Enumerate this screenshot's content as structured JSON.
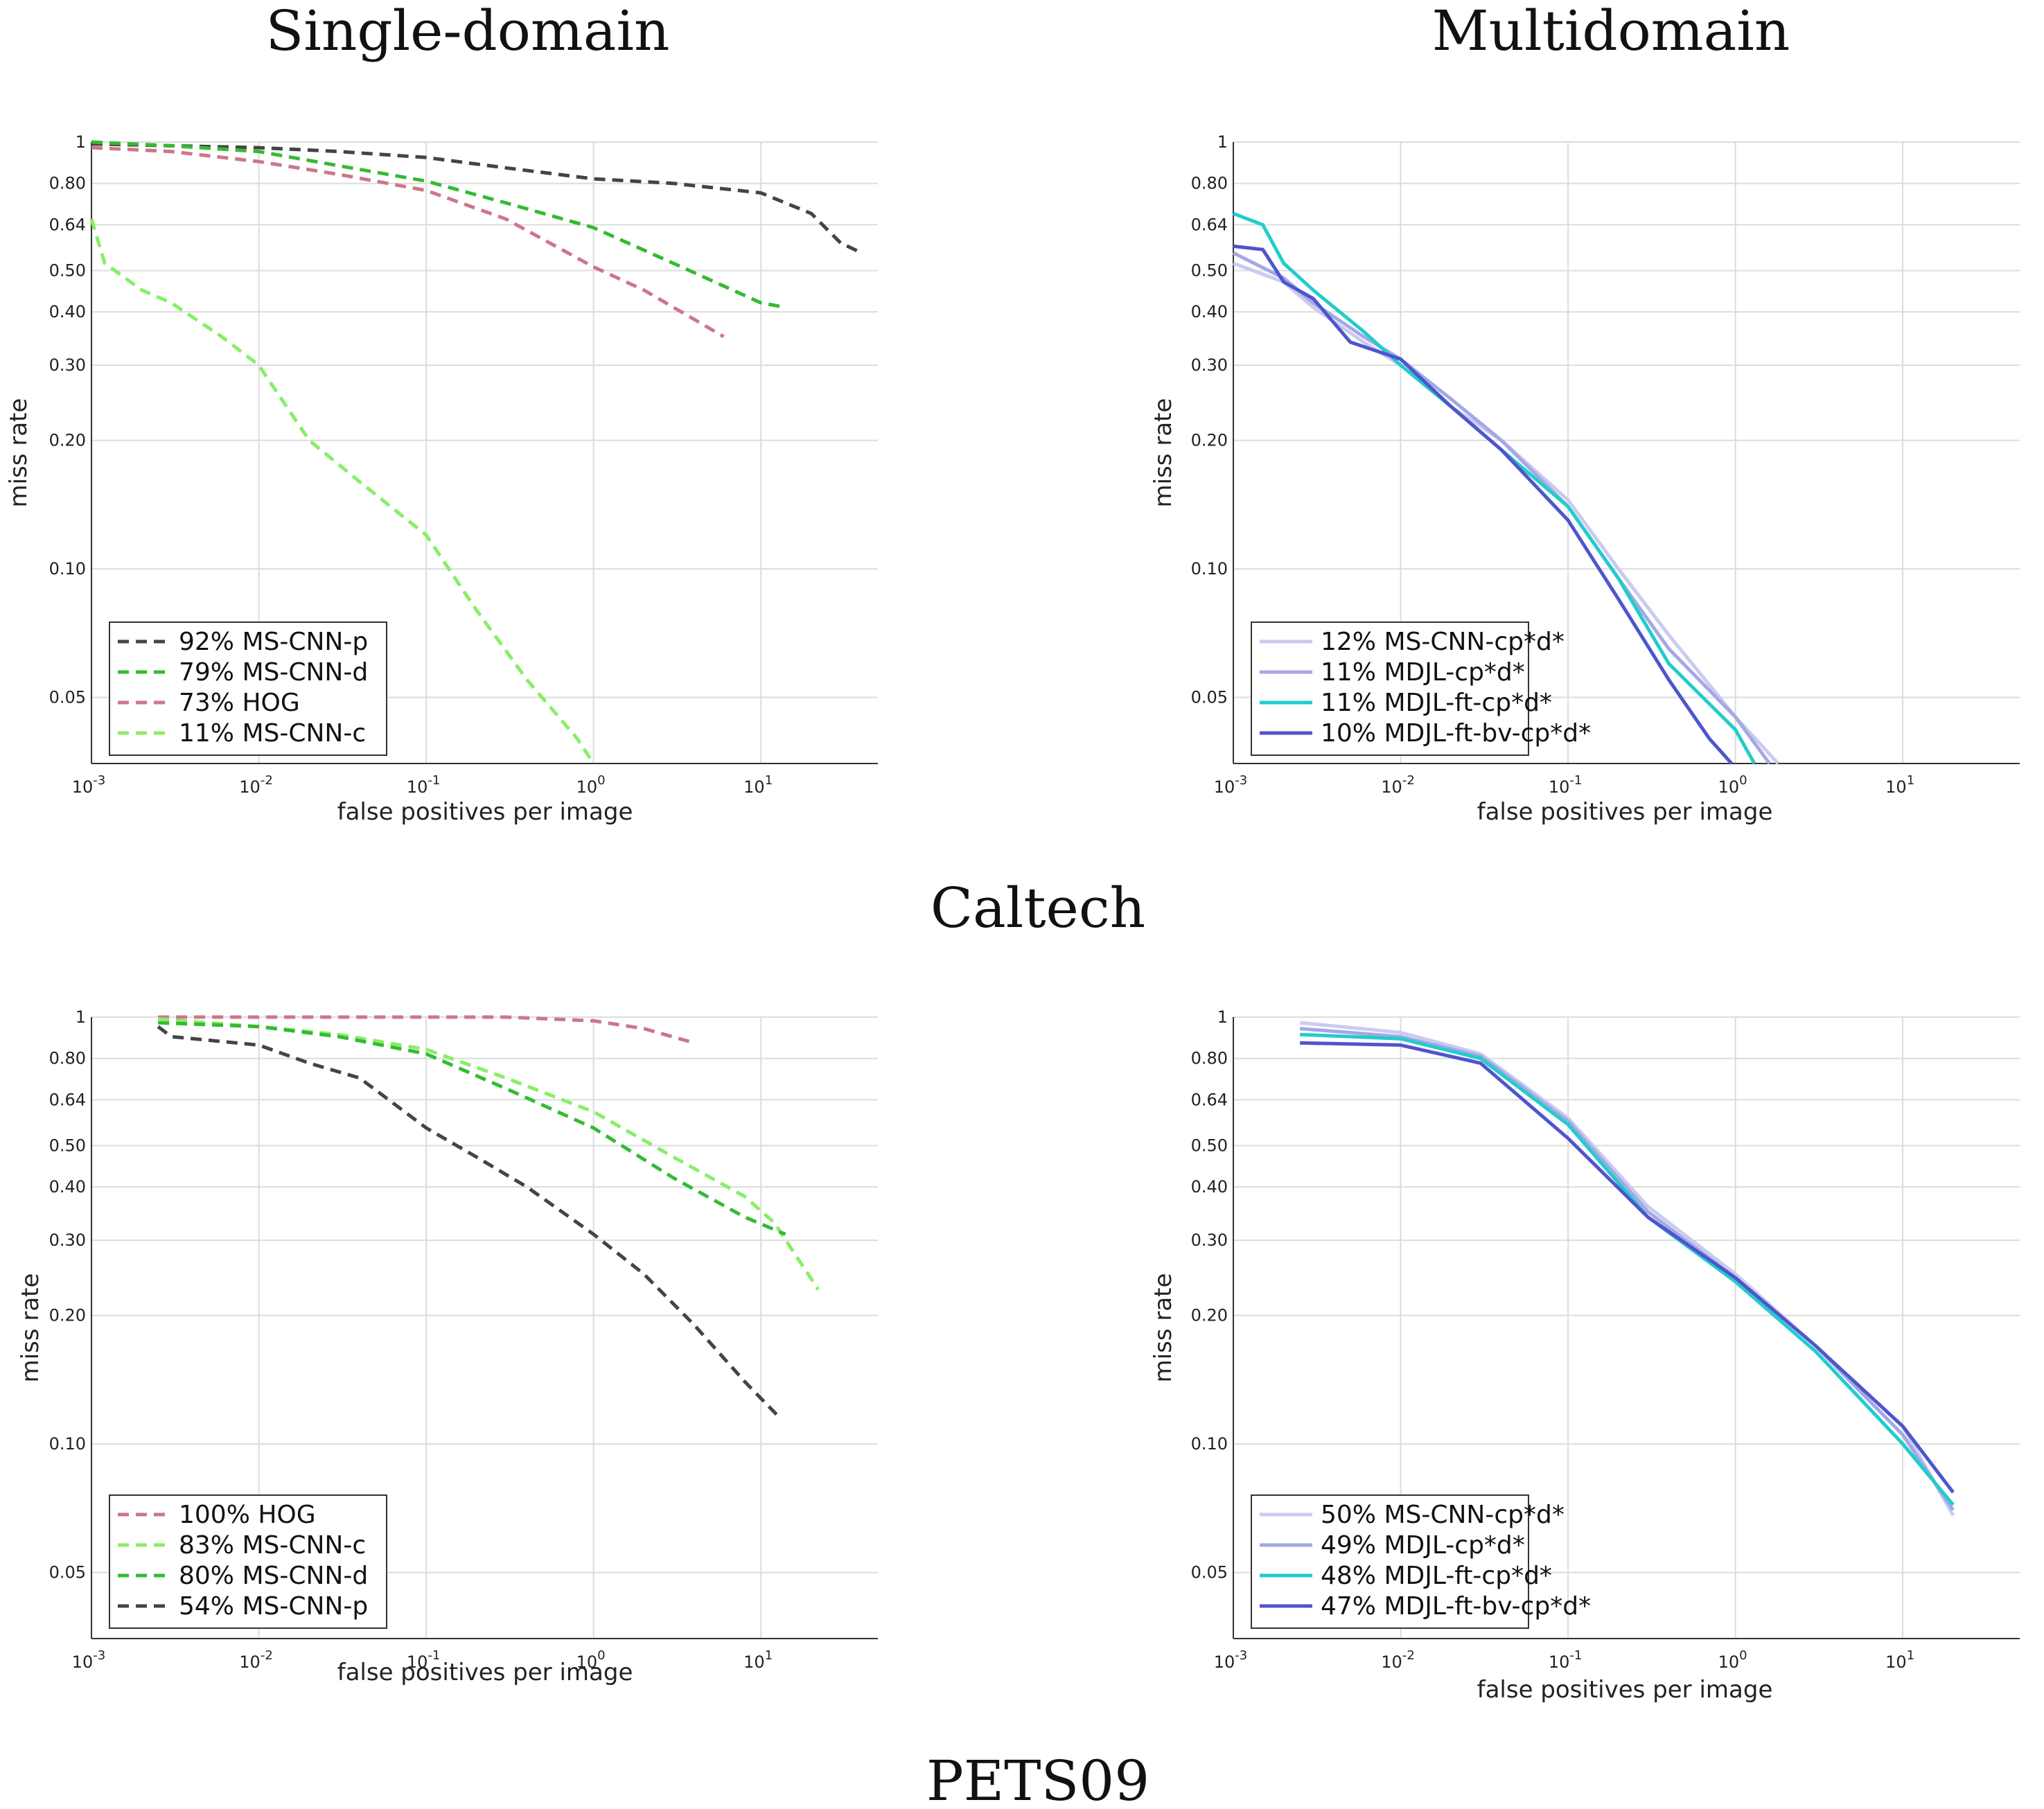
{
  "headings": {
    "single_domain": "Single-domain",
    "multidomain": "Multidomain",
    "caltech": "Caltech",
    "pets09": "PETS09"
  },
  "chart_data": [
    {
      "type": "line",
      "dataset": "Caltech",
      "column": "Single-domain",
      "xlabel": "false positives per image",
      "ylabel": "miss rate",
      "xscale": "log",
      "yscale": "log",
      "xlim": [
        0.001,
        50
      ],
      "ylim": [
        0.035,
        1
      ],
      "xticks": [
        "10-3",
        "10-2",
        "10-1",
        "100",
        "101"
      ],
      "yticks": [
        "1",
        "0.80",
        "0.64",
        "0.50",
        "0.40",
        "0.30",
        "0.20",
        "0.10",
        "0.05"
      ],
      "grid": true,
      "legend_position": "bottom-left",
      "series": [
        {
          "name": "92% MS-CNN-p",
          "color": "#444444",
          "dash": "dashed",
          "points": [
            [
              0.001,
              0.99
            ],
            [
              0.003,
              0.98
            ],
            [
              0.01,
              0.97
            ],
            [
              0.03,
              0.95
            ],
            [
              0.1,
              0.92
            ],
            [
              0.3,
              0.87
            ],
            [
              1,
              0.82
            ],
            [
              3,
              0.8
            ],
            [
              10,
              0.76
            ],
            [
              20,
              0.68
            ],
            [
              30,
              0.58
            ],
            [
              40,
              0.55
            ]
          ]
        },
        {
          "name": "79% MS-CNN-d",
          "color": "#33bb33",
          "dash": "dashed",
          "points": [
            [
              0.001,
              1.0
            ],
            [
              0.003,
              0.98
            ],
            [
              0.01,
              0.95
            ],
            [
              0.03,
              0.88
            ],
            [
              0.1,
              0.81
            ],
            [
              0.3,
              0.72
            ],
            [
              1,
              0.63
            ],
            [
              3,
              0.52
            ],
            [
              10,
              0.42
            ],
            [
              14,
              0.41
            ]
          ]
        },
        {
          "name": "73% HOG",
          "color": "#cc7788",
          "dash": "dashed",
          "points": [
            [
              0.001,
              0.97
            ],
            [
              0.003,
              0.95
            ],
            [
              0.01,
              0.9
            ],
            [
              0.03,
              0.84
            ],
            [
              0.1,
              0.77
            ],
            [
              0.3,
              0.66
            ],
            [
              1,
              0.51
            ],
            [
              2,
              0.45
            ],
            [
              6,
              0.35
            ]
          ]
        },
        {
          "name": "11% MS-CNN-c",
          "color": "#88ee66",
          "dash": "dashed",
          "points": [
            [
              0.001,
              0.66
            ],
            [
              0.0012,
              0.52
            ],
            [
              0.002,
              0.45
            ],
            [
              0.003,
              0.42
            ],
            [
              0.006,
              0.35
            ],
            [
              0.01,
              0.3
            ],
            [
              0.02,
              0.2
            ],
            [
              0.04,
              0.16
            ],
            [
              0.1,
              0.12
            ],
            [
              0.2,
              0.08
            ],
            [
              0.4,
              0.055
            ],
            [
              0.8,
              0.04
            ],
            [
              1.0,
              0.035
            ]
          ]
        }
      ]
    },
    {
      "type": "line",
      "dataset": "Caltech",
      "column": "Multidomain",
      "xlabel": "false positives per image",
      "ylabel": "miss rate",
      "xscale": "log",
      "yscale": "log",
      "xlim": [
        0.001,
        50
      ],
      "ylim": [
        0.035,
        1
      ],
      "xticks": [
        "10-3",
        "10-2",
        "10-1",
        "100",
        "101"
      ],
      "yticks": [
        "1",
        "0.80",
        "0.64",
        "0.50",
        "0.40",
        "0.30",
        "0.20",
        "0.10",
        "0.05"
      ],
      "grid": true,
      "legend_position": "bottom-left",
      "series": [
        {
          "name": "12% MS-CNN-cp*d*",
          "color": "#c9cbef",
          "dash": "solid",
          "points": [
            [
              0.001,
              0.52
            ],
            [
              0.002,
              0.47
            ],
            [
              0.003,
              0.41
            ],
            [
              0.006,
              0.34
            ],
            [
              0.01,
              0.3
            ],
            [
              0.02,
              0.24
            ],
            [
              0.04,
              0.2
            ],
            [
              0.1,
              0.145
            ],
            [
              0.2,
              0.1
            ],
            [
              0.4,
              0.07
            ],
            [
              1,
              0.045
            ],
            [
              1.8,
              0.035
            ]
          ]
        },
        {
          "name": "11% MDJL-cp*d*",
          "color": "#a4a8e6",
          "dash": "solid",
          "points": [
            [
              0.001,
              0.55
            ],
            [
              0.002,
              0.48
            ],
            [
              0.003,
              0.42
            ],
            [
              0.006,
              0.35
            ],
            [
              0.01,
              0.31
            ],
            [
              0.02,
              0.25
            ],
            [
              0.04,
              0.2
            ],
            [
              0.1,
              0.14
            ],
            [
              0.2,
              0.095
            ],
            [
              0.4,
              0.065
            ],
            [
              1,
              0.045
            ],
            [
              1.6,
              0.035
            ]
          ]
        },
        {
          "name": "11% MDJL-ft-cp*d*",
          "color": "#22cccc",
          "dash": "solid",
          "points": [
            [
              0.001,
              0.68
            ],
            [
              0.0015,
              0.64
            ],
            [
              0.002,
              0.52
            ],
            [
              0.003,
              0.45
            ],
            [
              0.006,
              0.36
            ],
            [
              0.01,
              0.3
            ],
            [
              0.02,
              0.24
            ],
            [
              0.04,
              0.19
            ],
            [
              0.1,
              0.14
            ],
            [
              0.2,
              0.095
            ],
            [
              0.4,
              0.06
            ],
            [
              1,
              0.042
            ],
            [
              1.3,
              0.035
            ]
          ]
        },
        {
          "name": "10% MDJL-ft-bv-cp*d*",
          "color": "#4f55cc",
          "dash": "solid",
          "points": [
            [
              0.001,
              0.57
            ],
            [
              0.0015,
              0.56
            ],
            [
              0.002,
              0.47
            ],
            [
              0.003,
              0.43
            ],
            [
              0.005,
              0.34
            ],
            [
              0.01,
              0.31
            ],
            [
              0.02,
              0.24
            ],
            [
              0.04,
              0.19
            ],
            [
              0.1,
              0.13
            ],
            [
              0.2,
              0.085
            ],
            [
              0.4,
              0.055
            ],
            [
              0.7,
              0.04
            ],
            [
              0.95,
              0.035
            ]
          ]
        }
      ]
    },
    {
      "type": "line",
      "dataset": "PETS09",
      "column": "Single-domain",
      "xlabel": "false positives per image",
      "ylabel": "miss rate",
      "xscale": "log",
      "yscale": "log",
      "xlim": [
        0.001,
        50
      ],
      "ylim": [
        0.035,
        1
      ],
      "xticks": [
        "10-3",
        "10-2",
        "10-1",
        "100",
        "101"
      ],
      "yticks": [
        "1",
        "0.80",
        "0.64",
        "0.50",
        "0.40",
        "0.30",
        "0.20",
        "0.10",
        "0.05"
      ],
      "grid": true,
      "legend_position": "bottom-left",
      "series": [
        {
          "name": "100% HOG",
          "color": "#cc7788",
          "dash": "dashed",
          "points": [
            [
              0.0025,
              1.0
            ],
            [
              0.01,
              1.0
            ],
            [
              0.1,
              1.0
            ],
            [
              0.3,
              1.0
            ],
            [
              1,
              0.98
            ],
            [
              2,
              0.94
            ],
            [
              4,
              0.87
            ]
          ]
        },
        {
          "name": "83% MS-CNN-c",
          "color": "#88ee66",
          "dash": "dashed",
          "points": [
            [
              0.0025,
              0.99
            ],
            [
              0.01,
              0.95
            ],
            [
              0.03,
              0.91
            ],
            [
              0.1,
              0.84
            ],
            [
              0.3,
              0.72
            ],
            [
              1,
              0.6
            ],
            [
              3,
              0.47
            ],
            [
              8,
              0.38
            ],
            [
              12,
              0.33
            ],
            [
              22,
              0.23
            ]
          ]
        },
        {
          "name": "80% MS-CNN-d",
          "color": "#33bb33",
          "dash": "dashed",
          "points": [
            [
              0.0025,
              0.97
            ],
            [
              0.01,
              0.95
            ],
            [
              0.03,
              0.9
            ],
            [
              0.1,
              0.82
            ],
            [
              0.3,
              0.68
            ],
            [
              1,
              0.55
            ],
            [
              3,
              0.42
            ],
            [
              8,
              0.34
            ],
            [
              14,
              0.31
            ]
          ]
        },
        {
          "name": "54% MS-CNN-p",
          "color": "#444444",
          "dash": "dashed",
          "points": [
            [
              0.0025,
              0.95
            ],
            [
              0.003,
              0.9
            ],
            [
              0.01,
              0.86
            ],
            [
              0.02,
              0.78
            ],
            [
              0.04,
              0.72
            ],
            [
              0.1,
              0.55
            ],
            [
              0.2,
              0.47
            ],
            [
              0.4,
              0.4
            ],
            [
              1,
              0.31
            ],
            [
              2,
              0.25
            ],
            [
              4,
              0.19
            ],
            [
              8,
              0.14
            ],
            [
              13,
              0.115
            ]
          ]
        }
      ]
    },
    {
      "type": "line",
      "dataset": "PETS09",
      "column": "Multidomain",
      "xlabel": "false positives per image",
      "ylabel": "miss rate",
      "xscale": "log",
      "yscale": "log",
      "xlim": [
        0.001,
        50
      ],
      "ylim": [
        0.035,
        1
      ],
      "xticks": [
        "10-3",
        "10-2",
        "10-1",
        "100",
        "101"
      ],
      "yticks": [
        "1",
        "0.80",
        "0.64",
        "0.50",
        "0.40",
        "0.30",
        "0.20",
        "0.10",
        "0.05"
      ],
      "grid": true,
      "legend_position": "bottom-left",
      "series": [
        {
          "name": "50% MS-CNN-cp*d*",
          "color": "#c9cbef",
          "dash": "solid",
          "points": [
            [
              0.0025,
              0.97
            ],
            [
              0.01,
              0.92
            ],
            [
              0.03,
              0.82
            ],
            [
              0.1,
              0.58
            ],
            [
              0.3,
              0.36
            ],
            [
              1,
              0.25
            ],
            [
              3,
              0.17
            ],
            [
              10,
              0.11
            ],
            [
              20,
              0.068
            ]
          ]
        },
        {
          "name": "49% MDJL-cp*d*",
          "color": "#a4a8e6",
          "dash": "solid",
          "points": [
            [
              0.0025,
              0.94
            ],
            [
              0.01,
              0.9
            ],
            [
              0.03,
              0.81
            ],
            [
              0.1,
              0.57
            ],
            [
              0.3,
              0.35
            ],
            [
              1,
              0.245
            ],
            [
              3,
              0.17
            ],
            [
              10,
              0.105
            ],
            [
              20,
              0.07
            ]
          ]
        },
        {
          "name": "48% MDJL-ft-cp*d*",
          "color": "#22cccc",
          "dash": "solid",
          "points": [
            [
              0.0025,
              0.91
            ],
            [
              0.01,
              0.89
            ],
            [
              0.03,
              0.8
            ],
            [
              0.1,
              0.56
            ],
            [
              0.3,
              0.34
            ],
            [
              1,
              0.24
            ],
            [
              3,
              0.165
            ],
            [
              10,
              0.1
            ],
            [
              20,
              0.072
            ]
          ]
        },
        {
          "name": "47% MDJL-ft-bv-cp*d*",
          "color": "#4f55cc",
          "dash": "solid",
          "points": [
            [
              0.0025,
              0.87
            ],
            [
              0.01,
              0.86
            ],
            [
              0.03,
              0.78
            ],
            [
              0.1,
              0.52
            ],
            [
              0.3,
              0.34
            ],
            [
              1,
              0.245
            ],
            [
              3,
              0.17
            ],
            [
              10,
              0.11
            ],
            [
              20,
              0.077
            ]
          ]
        }
      ]
    }
  ]
}
